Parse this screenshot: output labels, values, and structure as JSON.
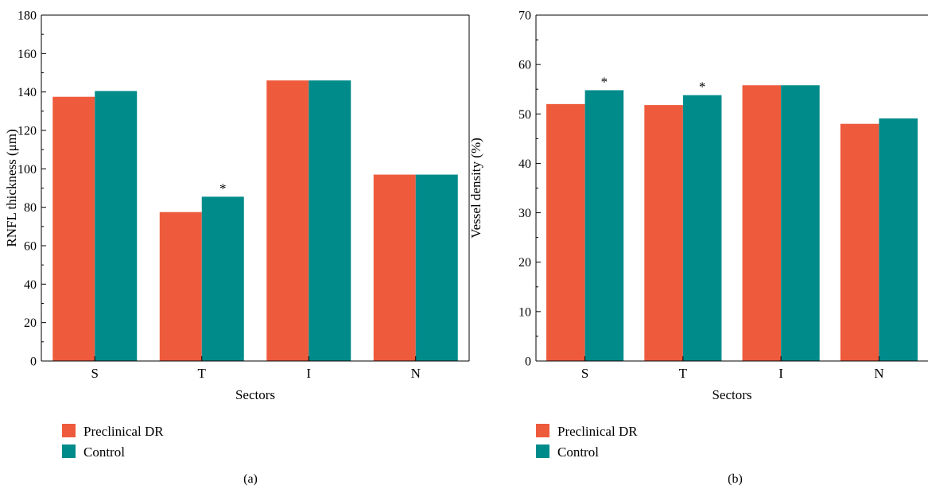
{
  "colors": {
    "preclinical": "#EE5B3C",
    "control": "#008B8B"
  },
  "chart_data": [
    {
      "type": "bar",
      "categories": [
        "S",
        "T",
        "I",
        "N"
      ],
      "series": [
        {
          "name": "Preclinical DR",
          "values": [
            137.5,
            77.5,
            146,
            97
          ]
        },
        {
          "name": "Control",
          "values": [
            140.5,
            85.5,
            146,
            97
          ]
        }
      ],
      "xlabel": "Sectors",
      "ylabel": "RNFL thickness (μm)",
      "ylim": [
        0,
        180
      ],
      "yticks": [
        0,
        20,
        40,
        60,
        80,
        100,
        120,
        140,
        160,
        180
      ],
      "annotations": [
        {
          "category": "T",
          "series": "Control",
          "text": "*"
        }
      ],
      "legend": "bottom-left",
      "panel_label": "(a)"
    },
    {
      "type": "bar",
      "categories": [
        "S",
        "T",
        "I",
        "N"
      ],
      "series": [
        {
          "name": "Preclinical DR",
          "values": [
            52,
            51.8,
            55.8,
            48
          ]
        },
        {
          "name": "Control",
          "values": [
            54.8,
            53.8,
            55.8,
            49.1
          ]
        }
      ],
      "xlabel": "Sectors",
      "ylabel": "Vessel density (%)",
      "ylim": [
        0,
        70
      ],
      "yticks": [
        0,
        10,
        20,
        30,
        40,
        50,
        60,
        70
      ],
      "annotations": [
        {
          "category": "S",
          "series": "Control",
          "text": "*"
        },
        {
          "category": "T",
          "series": "Control",
          "text": "*"
        }
      ],
      "legend": "bottom-left",
      "panel_label": "(b)"
    }
  ]
}
